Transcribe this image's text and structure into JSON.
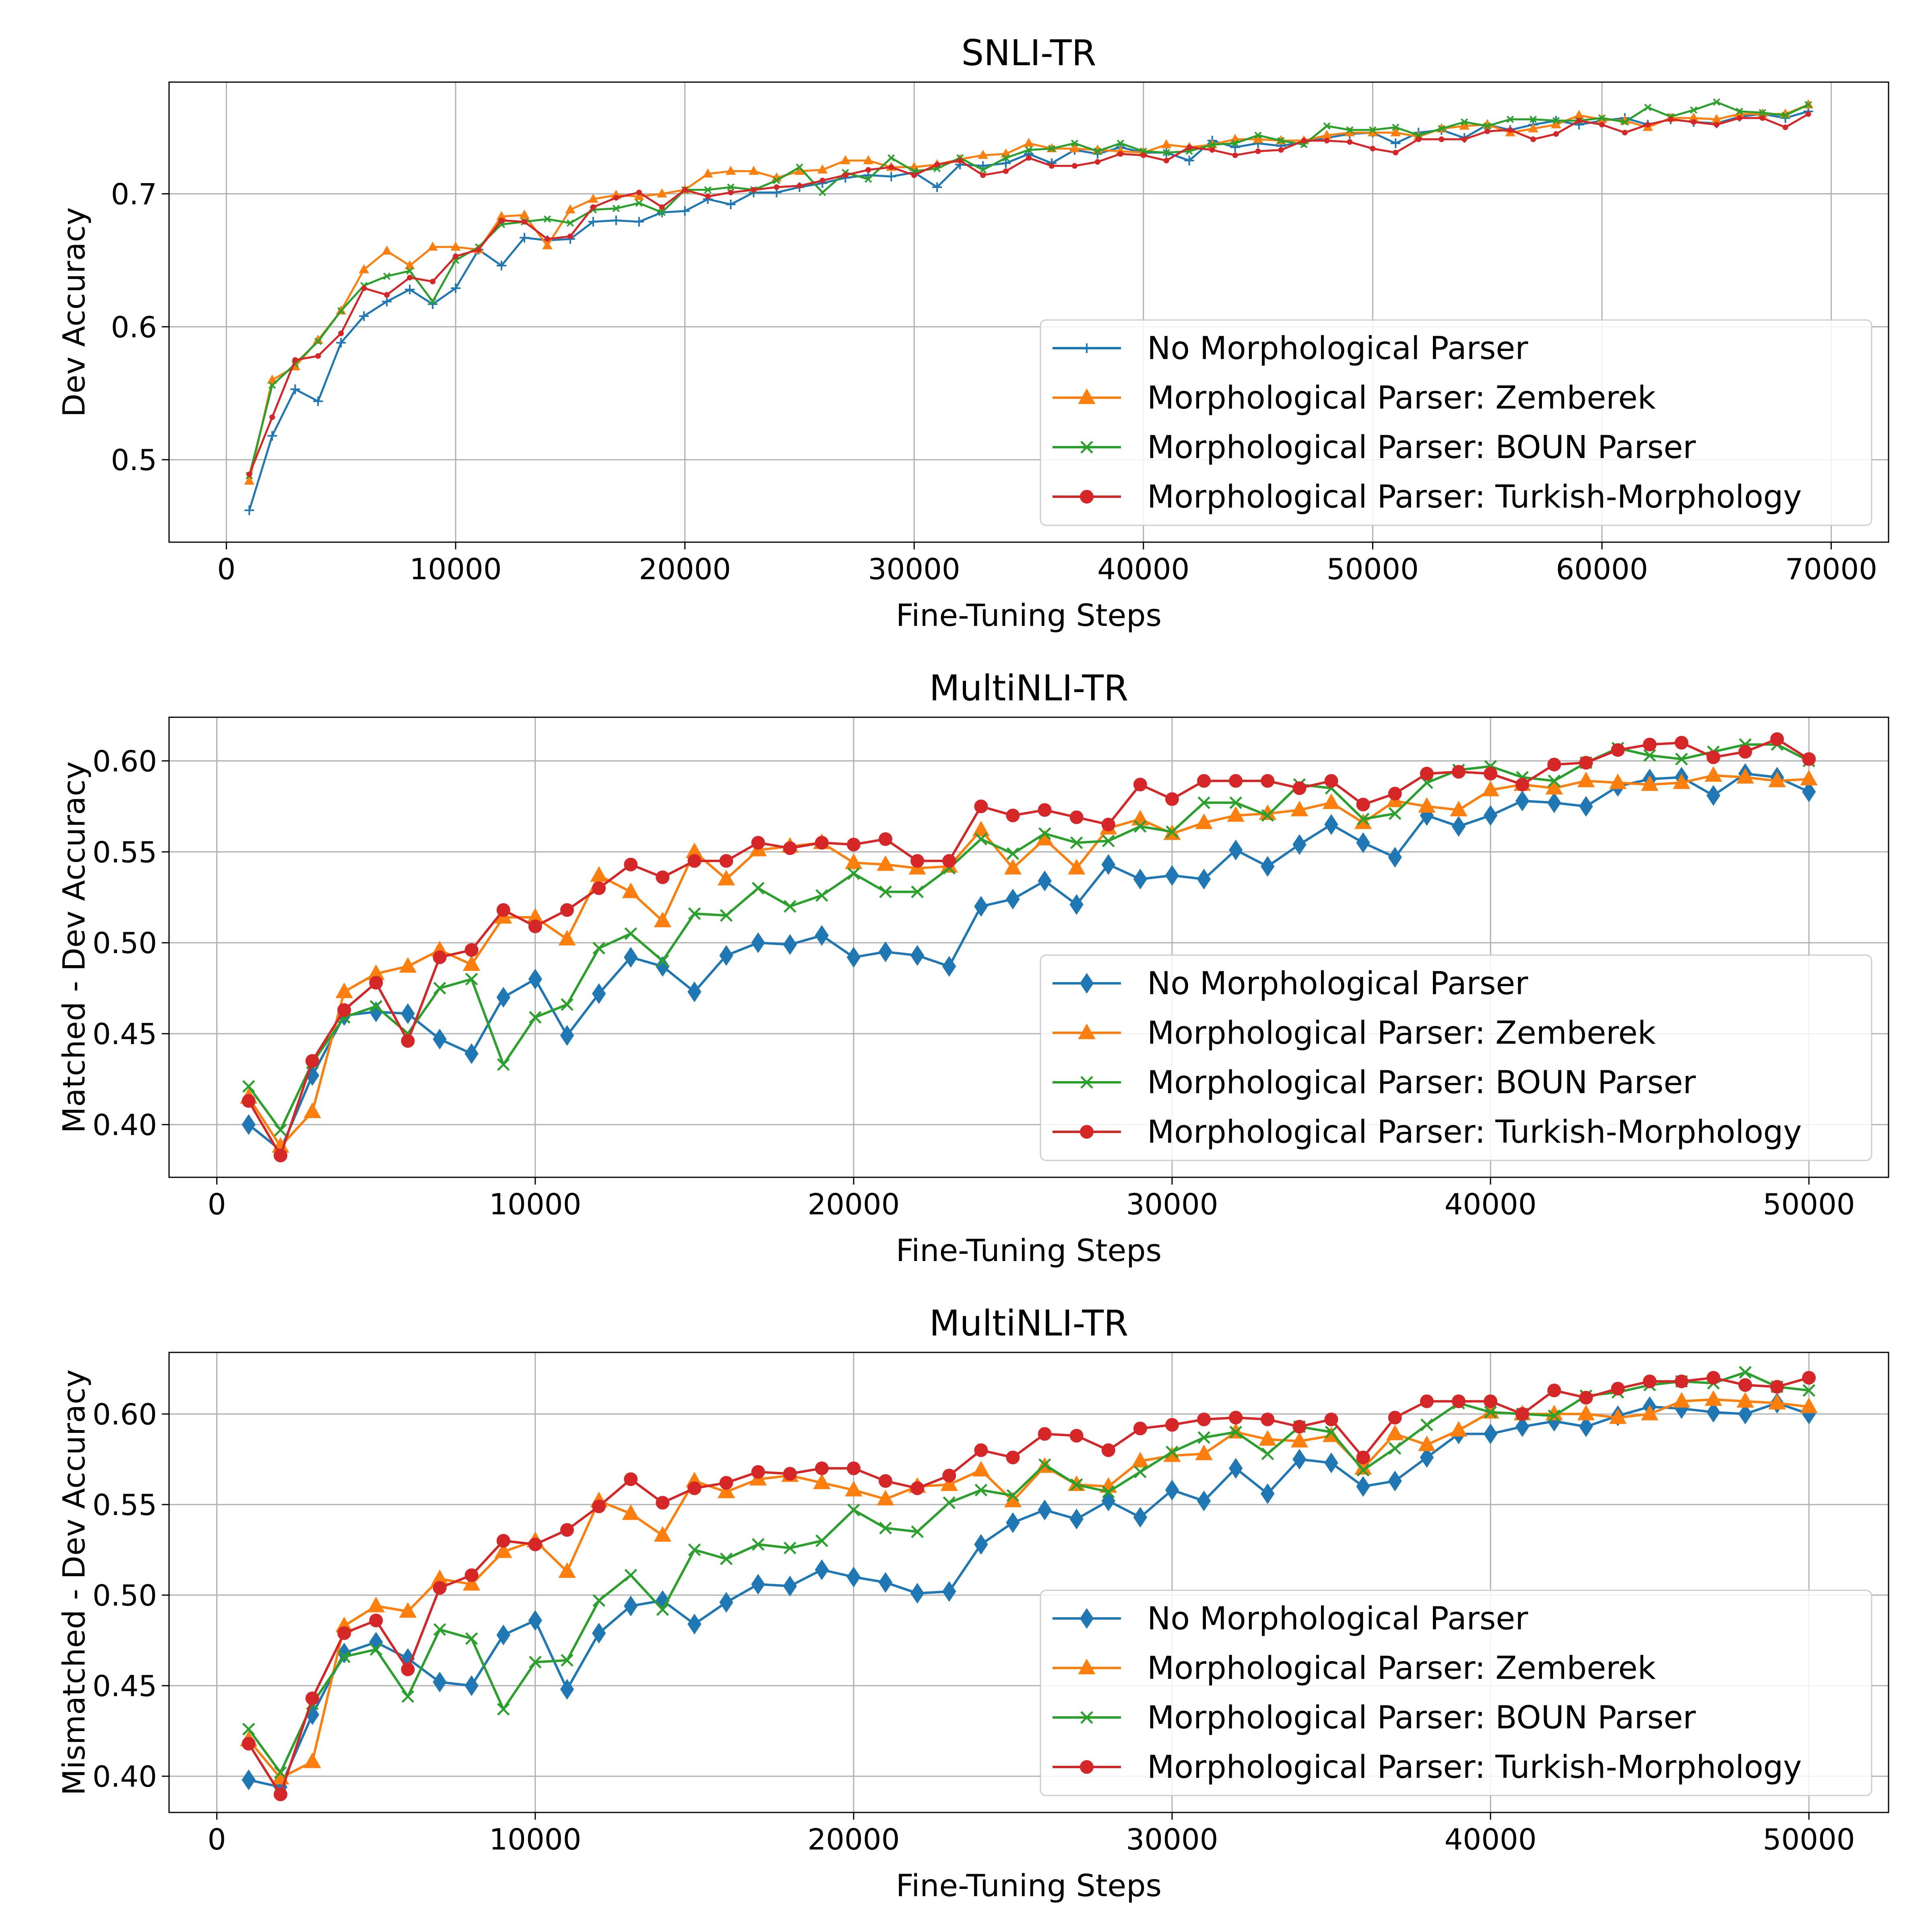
{
  "chart_data": [
    {
      "type": "line",
      "title": "SNLI-TR",
      "xlabel": "Fine-Tuning Steps",
      "ylabel": "Dev Accuracy",
      "xlim": [
        -2500,
        72500
      ],
      "ylim": [
        0.438,
        0.784
      ],
      "xticks": [
        0,
        10000,
        20000,
        30000,
        40000,
        50000,
        60000,
        70000
      ],
      "yticks": [
        0.5,
        0.6,
        0.7
      ],
      "xtick_labels": [
        "0",
        "10000",
        "20000",
        "30000",
        "40000",
        "50000",
        "60000",
        "70000"
      ],
      "ytick_labels": [
        "0.5",
        "0.6",
        "0.7"
      ],
      "grid": true,
      "legend_position": "lower-right",
      "x": [
        1000,
        2000,
        3000,
        4000,
        5000,
        6000,
        7000,
        8000,
        9000,
        10000,
        11000,
        12000,
        13000,
        14000,
        15000,
        16000,
        17000,
        18000,
        19000,
        20000,
        21000,
        22000,
        23000,
        24000,
        25000,
        26000,
        27000,
        28000,
        29000,
        30000,
        31000,
        32000,
        33000,
        34000,
        35000,
        36000,
        37000,
        38000,
        39000,
        40000,
        41000,
        42000,
        43000,
        44000,
        45000,
        46000,
        47000,
        48000,
        49000,
        50000,
        51000,
        52000,
        53000,
        54000,
        55000,
        56000,
        57000,
        58000,
        59000,
        60000,
        61000,
        62000,
        63000,
        64000,
        65000,
        66000,
        67000,
        68000,
        69000
      ],
      "series": [
        {
          "name": "No Morphological Parser",
          "color": "#1f77b4",
          "marker": "plus",
          "values": [
            0.462,
            0.518,
            0.553,
            0.544,
            0.588,
            0.608,
            0.619,
            0.628,
            0.617,
            0.629,
            0.658,
            0.646,
            0.667,
            0.665,
            0.666,
            0.679,
            0.68,
            0.679,
            0.686,
            0.687,
            0.696,
            0.692,
            0.701,
            0.701,
            0.705,
            0.708,
            0.712,
            0.714,
            0.713,
            0.716,
            0.705,
            0.722,
            0.721,
            0.723,
            0.73,
            0.723,
            0.733,
            0.73,
            0.735,
            0.731,
            0.731,
            0.725,
            0.74,
            0.735,
            0.738,
            0.736,
            0.739,
            0.742,
            0.745,
            0.746,
            0.738,
            0.746,
            0.748,
            0.742,
            0.752,
            0.748,
            0.752,
            0.755,
            0.752,
            0.755,
            0.757,
            0.752,
            0.756,
            0.754,
            0.753,
            0.758,
            0.76,
            0.757,
            0.762
          ]
        },
        {
          "name": "Morphological Parser: Zemberek",
          "color": "#ff7f0e",
          "marker": "triangle",
          "values": [
            0.484,
            0.56,
            0.57,
            0.59,
            0.612,
            0.643,
            0.657,
            0.646,
            0.66,
            0.66,
            0.658,
            0.683,
            0.684,
            0.661,
            0.688,
            0.696,
            0.699,
            0.698,
            0.7,
            0.703,
            0.715,
            0.717,
            0.717,
            0.712,
            0.717,
            0.718,
            0.725,
            0.725,
            0.72,
            0.72,
            0.722,
            0.726,
            0.729,
            0.73,
            0.738,
            0.734,
            0.734,
            0.733,
            0.732,
            0.731,
            0.737,
            0.735,
            0.737,
            0.741,
            0.741,
            0.74,
            0.74,
            0.744,
            0.746,
            0.746,
            0.746,
            0.743,
            0.749,
            0.751,
            0.752,
            0.746,
            0.749,
            0.752,
            0.759,
            0.756,
            0.755,
            0.75,
            0.757,
            0.757,
            0.756,
            0.76,
            0.76,
            0.76,
            0.767
          ]
        },
        {
          "name": "Morphological Parser: BOUN Parser",
          "color": "#2ca02c",
          "marker": "x",
          "values": [
            0.488,
            0.556,
            0.572,
            0.589,
            0.612,
            0.631,
            0.638,
            0.642,
            0.619,
            0.65,
            0.66,
            0.677,
            0.679,
            0.681,
            0.678,
            0.688,
            0.689,
            0.693,
            0.686,
            0.703,
            0.703,
            0.705,
            0.703,
            0.71,
            0.72,
            0.701,
            0.716,
            0.711,
            0.727,
            0.717,
            0.719,
            0.727,
            0.718,
            0.727,
            0.733,
            0.734,
            0.738,
            0.732,
            0.738,
            0.732,
            0.731,
            0.732,
            0.737,
            0.738,
            0.744,
            0.74,
            0.737,
            0.751,
            0.748,
            0.748,
            0.75,
            0.744,
            0.749,
            0.754,
            0.751,
            0.756,
            0.756,
            0.755,
            0.755,
            0.757,
            0.754,
            0.765,
            0.758,
            0.763,
            0.769,
            0.762,
            0.761,
            0.759,
            0.767
          ]
        },
        {
          "name": "Morphological Parser: Turkish-Morphology",
          "color": "#d62728",
          "marker": "dot",
          "values": [
            0.489,
            0.532,
            0.575,
            0.578,
            0.595,
            0.629,
            0.624,
            0.637,
            0.634,
            0.653,
            0.658,
            0.68,
            0.679,
            0.666,
            0.668,
            0.69,
            0.697,
            0.701,
            0.69,
            0.703,
            0.698,
            0.701,
            0.703,
            0.705,
            0.706,
            0.71,
            0.714,
            0.718,
            0.72,
            0.714,
            0.722,
            0.725,
            0.714,
            0.717,
            0.727,
            0.721,
            0.721,
            0.724,
            0.73,
            0.729,
            0.725,
            0.735,
            0.733,
            0.729,
            0.732,
            0.733,
            0.74,
            0.74,
            0.739,
            0.734,
            0.731,
            0.741,
            0.741,
            0.741,
            0.747,
            0.748,
            0.741,
            0.745,
            0.755,
            0.752,
            0.746,
            0.752,
            0.756,
            0.754,
            0.752,
            0.757,
            0.757,
            0.75,
            0.76
          ]
        }
      ]
    },
    {
      "type": "line",
      "title": "MultiNLI-TR",
      "xlabel": "Fine-Tuning Steps",
      "ylabel": "Matched - Dev Accuracy",
      "xlim": [
        -1500,
        52500
      ],
      "ylim": [
        0.371,
        0.624
      ],
      "xticks": [
        0,
        10000,
        20000,
        30000,
        40000,
        50000
      ],
      "yticks": [
        0.4,
        0.45,
        0.5,
        0.55,
        0.6
      ],
      "xtick_labels": [
        "0",
        "10000",
        "20000",
        "30000",
        "40000",
        "50000"
      ],
      "ytick_labels": [
        "0.40",
        "0.45",
        "0.50",
        "0.55",
        "0.60"
      ],
      "grid": true,
      "legend_position": "lower-right",
      "x": [
        1000,
        2000,
        3000,
        4000,
        5000,
        6000,
        7000,
        8000,
        9000,
        10000,
        11000,
        12000,
        13000,
        14000,
        15000,
        16000,
        17000,
        18000,
        19000,
        20000,
        21000,
        22000,
        23000,
        24000,
        25000,
        26000,
        27000,
        28000,
        29000,
        30000,
        31000,
        32000,
        33000,
        34000,
        35000,
        36000,
        37000,
        38000,
        39000,
        40000,
        41000,
        42000,
        43000,
        44000,
        45000,
        46000,
        47000,
        48000,
        49000,
        50000
      ],
      "series": [
        {
          "name": "No Morphological Parser",
          "color": "#1f77b4",
          "marker": "diamond",
          "values": [
            0.4,
            0.386,
            0.427,
            0.46,
            0.462,
            0.461,
            0.447,
            0.439,
            0.47,
            0.48,
            0.449,
            0.472,
            0.492,
            0.487,
            0.473,
            0.493,
            0.5,
            0.499,
            0.504,
            0.492,
            0.495,
            0.493,
            0.487,
            0.52,
            0.524,
            0.534,
            0.521,
            0.543,
            0.535,
            0.537,
            0.535,
            0.551,
            0.542,
            0.554,
            0.565,
            0.555,
            0.547,
            0.57,
            0.564,
            0.57,
            0.578,
            0.577,
            0.575,
            0.586,
            0.59,
            0.591,
            0.581,
            0.593,
            0.591,
            0.583
          ]
        },
        {
          "name": "Morphological Parser: Zemberek",
          "color": "#ff7f0e",
          "marker": "triangle",
          "values": [
            0.415,
            0.388,
            0.407,
            0.473,
            0.483,
            0.487,
            0.496,
            0.488,
            0.514,
            0.514,
            0.502,
            0.537,
            0.528,
            0.512,
            0.55,
            0.535,
            0.551,
            0.553,
            0.555,
            0.544,
            0.543,
            0.541,
            0.542,
            0.562,
            0.541,
            0.557,
            0.541,
            0.563,
            0.568,
            0.56,
            0.566,
            0.57,
            0.571,
            0.573,
            0.577,
            0.566,
            0.578,
            0.575,
            0.573,
            0.584,
            0.587,
            0.585,
            0.589,
            0.588,
            0.587,
            0.588,
            0.592,
            0.591,
            0.589,
            0.59
          ]
        },
        {
          "name": "Morphological Parser: BOUN Parser",
          "color": "#2ca02c",
          "marker": "x",
          "values": [
            0.421,
            0.397,
            0.434,
            0.459,
            0.465,
            0.45,
            0.475,
            0.48,
            0.433,
            0.459,
            0.466,
            0.497,
            0.505,
            0.49,
            0.516,
            0.515,
            0.53,
            0.52,
            0.526,
            0.538,
            0.528,
            0.528,
            0.541,
            0.557,
            0.549,
            0.56,
            0.555,
            0.556,
            0.564,
            0.561,
            0.577,
            0.577,
            0.57,
            0.587,
            0.585,
            0.568,
            0.571,
            0.588,
            0.595,
            0.597,
            0.591,
            0.589,
            0.599,
            0.607,
            0.603,
            0.601,
            0.605,
            0.609,
            0.609,
            0.6
          ]
        },
        {
          "name": "Morphological Parser: Turkish-Morphology",
          "color": "#d62728",
          "marker": "dot",
          "values": [
            0.413,
            0.383,
            0.435,
            0.463,
            0.478,
            0.446,
            0.492,
            0.496,
            0.518,
            0.509,
            0.518,
            0.53,
            0.543,
            0.536,
            0.545,
            0.545,
            0.555,
            0.552,
            0.555,
            0.554,
            0.557,
            0.545,
            0.545,
            0.575,
            0.57,
            0.573,
            0.569,
            0.565,
            0.587,
            0.579,
            0.589,
            0.589,
            0.589,
            0.585,
            0.589,
            0.576,
            0.582,
            0.593,
            0.594,
            0.593,
            0.587,
            0.598,
            0.599,
            0.606,
            0.609,
            0.61,
            0.602,
            0.605,
            0.612,
            0.601
          ]
        }
      ]
    },
    {
      "type": "line",
      "title": "MultiNLI-TR",
      "xlabel": "Fine-Tuning Steps",
      "ylabel": "Mismatched - Dev Accuracy",
      "xlim": [
        -1500,
        52500
      ],
      "ylim": [
        0.38,
        0.634
      ],
      "xticks": [
        0,
        10000,
        20000,
        30000,
        40000,
        50000
      ],
      "yticks": [
        0.4,
        0.45,
        0.5,
        0.55,
        0.6
      ],
      "xtick_labels": [
        "0",
        "10000",
        "20000",
        "30000",
        "40000",
        "50000"
      ],
      "ytick_labels": [
        "0.40",
        "0.45",
        "0.50",
        "0.55",
        "0.60"
      ],
      "grid": true,
      "legend_position": "lower-right",
      "x": [
        1000,
        2000,
        3000,
        4000,
        5000,
        6000,
        7000,
        8000,
        9000,
        10000,
        11000,
        12000,
        13000,
        14000,
        15000,
        16000,
        17000,
        18000,
        19000,
        20000,
        21000,
        22000,
        23000,
        24000,
        25000,
        26000,
        27000,
        28000,
        29000,
        30000,
        31000,
        32000,
        33000,
        34000,
        35000,
        36000,
        37000,
        38000,
        39000,
        40000,
        41000,
        42000,
        43000,
        44000,
        45000,
        46000,
        47000,
        48000,
        49000,
        50000
      ],
      "series": [
        {
          "name": "No Morphological Parser",
          "color": "#1f77b4",
          "marker": "diamond",
          "values": [
            0.398,
            0.394,
            0.434,
            0.468,
            0.474,
            0.465,
            0.452,
            0.45,
            0.478,
            0.486,
            0.448,
            0.479,
            0.494,
            0.497,
            0.484,
            0.496,
            0.506,
            0.505,
            0.514,
            0.51,
            0.507,
            0.501,
            0.502,
            0.528,
            0.54,
            0.547,
            0.542,
            0.552,
            0.543,
            0.558,
            0.552,
            0.57,
            0.556,
            0.575,
            0.573,
            0.56,
            0.563,
            0.576,
            0.589,
            0.589,
            0.593,
            0.596,
            0.593,
            0.599,
            0.604,
            0.603,
            0.601,
            0.6,
            0.606,
            0.6
          ]
        },
        {
          "name": "Morphological Parser: Zemberek",
          "color": "#ff7f0e",
          "marker": "triangle",
          "values": [
            0.42,
            0.399,
            0.408,
            0.483,
            0.494,
            0.491,
            0.509,
            0.506,
            0.524,
            0.53,
            0.513,
            0.552,
            0.545,
            0.533,
            0.563,
            0.557,
            0.564,
            0.566,
            0.562,
            0.558,
            0.553,
            0.56,
            0.561,
            0.569,
            0.552,
            0.571,
            0.561,
            0.56,
            0.574,
            0.577,
            0.578,
            0.59,
            0.586,
            0.585,
            0.588,
            0.57,
            0.589,
            0.583,
            0.591,
            0.601,
            0.6,
            0.6,
            0.6,
            0.598,
            0.6,
            0.607,
            0.608,
            0.607,
            0.606,
            0.604
          ]
        },
        {
          "name": "Morphological Parser: BOUN Parser",
          "color": "#2ca02c",
          "marker": "x",
          "values": [
            0.426,
            0.402,
            0.44,
            0.466,
            0.47,
            0.444,
            0.481,
            0.476,
            0.437,
            0.463,
            0.464,
            0.497,
            0.511,
            0.492,
            0.525,
            0.52,
            0.528,
            0.526,
            0.53,
            0.547,
            0.537,
            0.535,
            0.551,
            0.558,
            0.555,
            0.572,
            0.561,
            0.557,
            0.568,
            0.579,
            0.587,
            0.59,
            0.578,
            0.593,
            0.59,
            0.569,
            0.581,
            0.594,
            0.606,
            0.601,
            0.6,
            0.599,
            0.61,
            0.612,
            0.616,
            0.618,
            0.617,
            0.623,
            0.615,
            0.613
          ]
        },
        {
          "name": "Morphological Parser: Turkish-Morphology",
          "color": "#d62728",
          "marker": "dot",
          "values": [
            0.418,
            0.39,
            0.443,
            0.479,
            0.486,
            0.459,
            0.504,
            0.511,
            0.53,
            0.528,
            0.536,
            0.549,
            0.564,
            0.551,
            0.559,
            0.562,
            0.568,
            0.567,
            0.57,
            0.57,
            0.563,
            0.559,
            0.566,
            0.58,
            0.576,
            0.589,
            0.588,
            0.58,
            0.592,
            0.594,
            0.597,
            0.598,
            0.597,
            0.593,
            0.597,
            0.576,
            0.598,
            0.607,
            0.607,
            0.607,
            0.6,
            0.613,
            0.609,
            0.614,
            0.618,
            0.618,
            0.62,
            0.616,
            0.615,
            0.62
          ]
        }
      ]
    }
  ]
}
